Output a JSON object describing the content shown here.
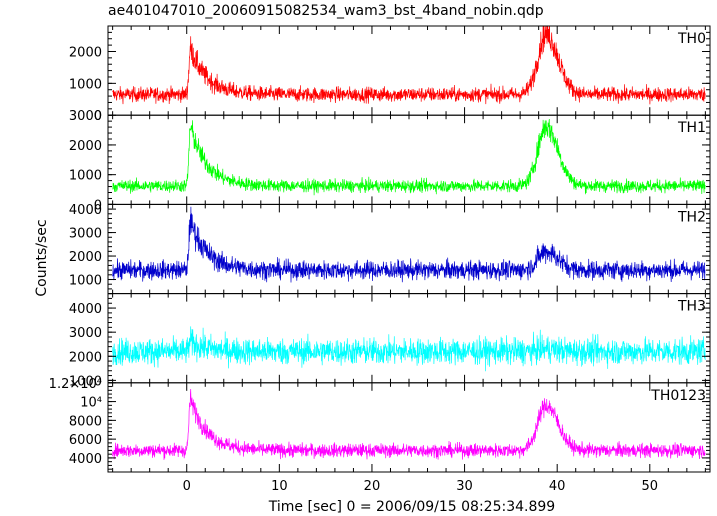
{
  "chart_data": {
    "type": "line",
    "title": "ae401047010_20060915082534_wam3_bst_4band_nobin.qdp",
    "xlabel": "Time [sec] 0 = 2006/09/15 08:25:34.899",
    "ylabel": "Counts/sec",
    "xlim": [
      -8.5,
      56.5
    ],
    "xticks": [
      0,
      10,
      20,
      30,
      40,
      50
    ],
    "grid": false,
    "events": [
      {
        "t": 0.4,
        "decay": 1.8
      },
      {
        "t": 38.8,
        "decay": 1.3
      }
    ],
    "panels": [
      {
        "name": "TH0",
        "color": "#ff0000",
        "ylim": [
          0,
          2800
        ],
        "ytick_values": [
          0,
          1000,
          2000
        ],
        "ytick_labels": [
          "0",
          "1000",
          "2000"
        ],
        "baseline": 650,
        "noise": 220,
        "peaks": [
          1450,
          1900
        ]
      },
      {
        "name": "TH1",
        "color": "#00ff00",
        "ylim": [
          0,
          3000
        ],
        "ytick_values": [
          0,
          1000,
          2000,
          3000
        ],
        "ytick_labels": [
          "0",
          "1000",
          "2000",
          "3000"
        ],
        "baseline": 620,
        "noise": 200,
        "peaks": [
          2000,
          2000
        ]
      },
      {
        "name": "TH2",
        "color": "#0000cc",
        "ylim": [
          400,
          4200
        ],
        "ytick_values": [
          1000,
          2000,
          3000,
          4000
        ],
        "ytick_labels": [
          "1000",
          "2000",
          "3000",
          "4000"
        ],
        "baseline": 1400,
        "noise": 380,
        "peaks": [
          2100,
          800
        ]
      },
      {
        "name": "TH3",
        "color": "#00ffff",
        "ylim": [
          900,
          4600
        ],
        "ytick_values": [
          1000,
          2000,
          3000,
          4000
        ],
        "ytick_labels": [
          "1000",
          "2000",
          "3000",
          "4000"
        ],
        "baseline": 2200,
        "noise": 520,
        "peaks": [
          400,
          100
        ]
      },
      {
        "name": "TH0123",
        "color": "#ff00ff",
        "ylim": [
          2500,
          12000
        ],
        "ytick_values": [
          4000,
          6000,
          8000,
          10000,
          12000
        ],
        "ytick_labels": [
          "4000",
          "6000",
          "8000",
          "10⁴",
          "1.2×10⁴"
        ],
        "baseline": 4800,
        "noise": 700,
        "peaks": [
          5500,
          4800
        ]
      }
    ]
  }
}
